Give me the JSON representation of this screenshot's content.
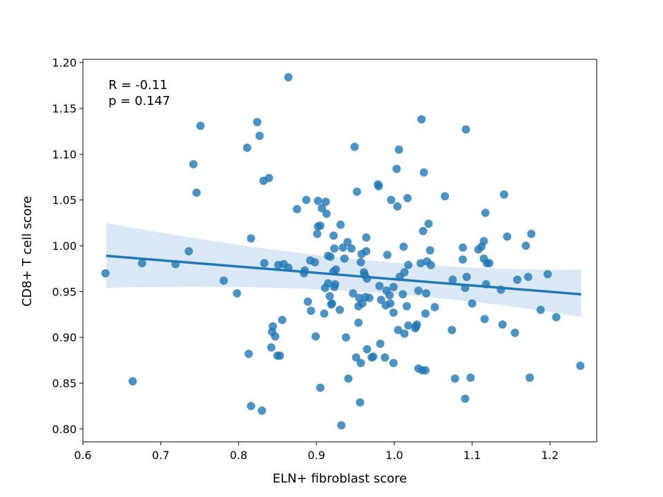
{
  "chart_data": {
    "type": "scatter",
    "title": "",
    "xlabel": "ELN+ fibroblast score",
    "ylabel": "CD8+ T cell score",
    "xlim": [
      0.6,
      1.26
    ],
    "ylim": [
      0.786,
      1.2035
    ],
    "xticks": [
      "0.6",
      "0.7",
      "0.8",
      "0.9",
      "1.0",
      "1.1",
      "1.2"
    ],
    "yticks": [
      "0.80",
      "0.85",
      "0.90",
      "0.95",
      "1.00",
      "1.05",
      "1.10",
      "1.15",
      "1.20"
    ],
    "grid": false,
    "annotation": {
      "line1": "R = -0.11",
      "line2": "p = 0.147"
    },
    "colors": {
      "points": "#1f77b4",
      "line": "#1f77b4",
      "band": "#c6dbef"
    },
    "regression": {
      "x": [
        0.63,
        1.24
      ],
      "y": [
        0.989,
        0.947
      ],
      "ci_lower": [
        0.954,
        0.922
      ],
      "ci_upper": [
        1.025,
        0.974
      ],
      "ci_mid_x": 0.97,
      "ci_mid_lower": 0.959,
      "ci_mid_upper": 0.974
    },
    "points": [
      [
        0.629,
        0.97
      ],
      [
        0.664,
        0.852
      ],
      [
        0.676,
        0.981
      ],
      [
        0.719,
        0.98
      ],
      [
        0.736,
        0.994
      ],
      [
        0.742,
        1.089
      ],
      [
        0.746,
        1.058
      ],
      [
        0.751,
        1.131
      ],
      [
        0.781,
        0.962
      ],
      [
        0.798,
        0.948
      ],
      [
        0.811,
        1.107
      ],
      [
        0.813,
        0.882
      ],
      [
        0.816,
        1.008
      ],
      [
        0.816,
        0.825
      ],
      [
        0.824,
        1.135
      ],
      [
        0.827,
        1.12
      ],
      [
        0.83,
        0.82
      ],
      [
        0.832,
        1.071
      ],
      [
        0.833,
        0.981
      ],
      [
        0.839,
        1.074
      ],
      [
        0.842,
        0.889
      ],
      [
        0.843,
        0.906
      ],
      [
        0.844,
        0.912
      ],
      [
        0.847,
        0.901
      ],
      [
        0.85,
        0.88
      ],
      [
        0.851,
        0.979
      ],
      [
        0.853,
        0.88
      ],
      [
        0.856,
        0.919
      ],
      [
        0.858,
        0.98
      ],
      [
        0.864,
        1.184
      ],
      [
        0.864,
        0.976
      ],
      [
        0.875,
        1.04
      ],
      [
        0.884,
        0.97
      ],
      [
        0.885,
        0.973
      ],
      [
        0.887,
        1.05
      ],
      [
        0.889,
        0.939
      ],
      [
        0.892,
        0.984
      ],
      [
        0.893,
        0.929
      ],
      [
        0.898,
        0.982
      ],
      [
        0.899,
        0.901
      ],
      [
        0.901,
        1.013
      ],
      [
        0.902,
        1.049
      ],
      [
        0.902,
        1.021
      ],
      [
        0.905,
        1.022
      ],
      [
        0.905,
        0.845
      ],
      [
        0.907,
        1.041
      ],
      [
        0.91,
        0.926
      ],
      [
        0.911,
        0.954
      ],
      [
        0.912,
        1.048
      ],
      [
        0.913,
        1.035
      ],
      [
        0.915,
        0.989
      ],
      [
        0.915,
        0.959
      ],
      [
        0.917,
        0.945
      ],
      [
        0.918,
        0.988
      ],
      [
        0.919,
        0.936
      ],
      [
        0.92,
        0.937
      ],
      [
        0.922,
        1.011
      ],
      [
        0.922,
        0.972
      ],
      [
        0.923,
        0.997
      ],
      [
        0.923,
        0.955
      ],
      [
        0.924,
        0.958
      ],
      [
        0.925,
        0.974
      ],
      [
        0.93,
        0.93
      ],
      [
        0.931,
        1.023
      ],
      [
        0.932,
        0.804
      ],
      [
        0.934,
        0.998
      ],
      [
        0.936,
        0.986
      ],
      [
        0.938,
        0.9
      ],
      [
        0.94,
        1.004
      ],
      [
        0.941,
        0.855
      ],
      [
        0.945,
        0.997
      ],
      [
        0.947,
        0.948
      ],
      [
        0.949,
        1.108
      ],
      [
        0.951,
        0.878
      ],
      [
        0.952,
        1.059
      ],
      [
        0.954,
        0.934
      ],
      [
        0.954,
        0.916
      ],
      [
        0.955,
        0.943
      ],
      [
        0.956,
        0.829
      ],
      [
        0.957,
        0.872
      ],
      [
        0.957,
        0.982
      ],
      [
        0.958,
        0.991
      ],
      [
        0.959,
        0.937
      ],
      [
        0.961,
        0.971
      ],
      [
        0.962,
        0.968
      ],
      [
        0.963,
        0.944
      ],
      [
        0.964,
        0.994
      ],
      [
        0.964,
        1.009
      ],
      [
        0.965,
        0.887
      ],
      [
        0.965,
        0.964
      ],
      [
        0.968,
        0.943
      ],
      [
        0.971,
        0.878
      ],
      [
        0.973,
        0.879
      ],
      [
        0.979,
        1.067
      ],
      [
        0.98,
        1.065
      ],
      [
        0.981,
        0.956
      ],
      [
        0.982,
        0.893
      ],
      [
        0.983,
        0.941
      ],
      [
        0.988,
        0.878
      ],
      [
        0.989,
        0.935
      ],
      [
        0.99,
        0.951
      ],
      [
        0.991,
        0.99
      ],
      [
        0.994,
        0.946
      ],
      [
        0.995,
        0.937
      ],
      [
        0.996,
        1.05
      ],
      [
        0.999,
        0.872
      ],
      [
        0.999,
        0.927
      ],
      [
        0.999,
        0.955
      ],
      [
        1.003,
        1.084
      ],
      [
        1.004,
        1.043
      ],
      [
        1.005,
        0.908
      ],
      [
        1.006,
        1.105
      ],
      [
        1.007,
        0.966
      ],
      [
        1.011,
        0.947
      ],
      [
        1.012,
        0.999
      ],
      [
        1.013,
        0.971
      ],
      [
        1.013,
        0.904
      ],
      [
        1.016,
        0.934
      ],
      [
        1.017,
        1.052
      ],
      [
        1.018,
        0.913
      ],
      [
        1.018,
        0.979
      ],
      [
        1.027,
        0.91
      ],
      [
        1.028,
        0.912
      ],
      [
        1.029,
        0.914
      ],
      [
        1.031,
        0.866
      ],
      [
        1.031,
        0.951
      ],
      [
        1.034,
        0.981
      ],
      [
        1.035,
        1.138
      ],
      [
        1.036,
        0.864
      ],
      [
        1.037,
        1.016
      ],
      [
        1.038,
        1.08
      ],
      [
        1.04,
        0.864
      ],
      [
        1.04,
        0.926
      ],
      [
        1.041,
        0.948
      ],
      [
        1.042,
        0.983
      ],
      [
        1.044,
        1.024
      ],
      [
        1.046,
        0.995
      ],
      [
        1.047,
        0.979
      ],
      [
        1.052,
        0.933
      ],
      [
        1.065,
        1.054
      ],
      [
        1.074,
        0.908
      ],
      [
        1.075,
        0.963
      ],
      [
        1.078,
        0.855
      ],
      [
        1.088,
        0.985
      ],
      [
        1.088,
        0.998
      ],
      [
        1.091,
        0.954
      ],
      [
        1.091,
        0.833
      ],
      [
        1.092,
        1.127
      ],
      [
        1.093,
        0.966
      ],
      [
        1.098,
        0.856
      ],
      [
        1.1,
        0.937
      ],
      [
        1.108,
        0.996
      ],
      [
        1.112,
        0.999
      ],
      [
        1.115,
        0.986
      ],
      [
        1.115,
        1.005
      ],
      [
        1.116,
        0.92
      ],
      [
        1.117,
        1.036
      ],
      [
        1.118,
        0.958
      ],
      [
        1.119,
        0.981
      ],
      [
        1.122,
        0.981
      ],
      [
        1.137,
        0.952
      ],
      [
        1.139,
        0.914
      ],
      [
        1.141,
        1.056
      ],
      [
        1.145,
        1.01
      ],
      [
        1.155,
        0.905
      ],
      [
        1.158,
        0.963
      ],
      [
        1.169,
        1.0
      ],
      [
        1.172,
        0.966
      ],
      [
        1.174,
        0.856
      ],
      [
        1.176,
        1.013
      ],
      [
        1.188,
        0.93
      ],
      [
        1.197,
        0.969
      ],
      [
        1.208,
        0.922
      ],
      [
        1.239,
        0.869
      ]
    ]
  }
}
